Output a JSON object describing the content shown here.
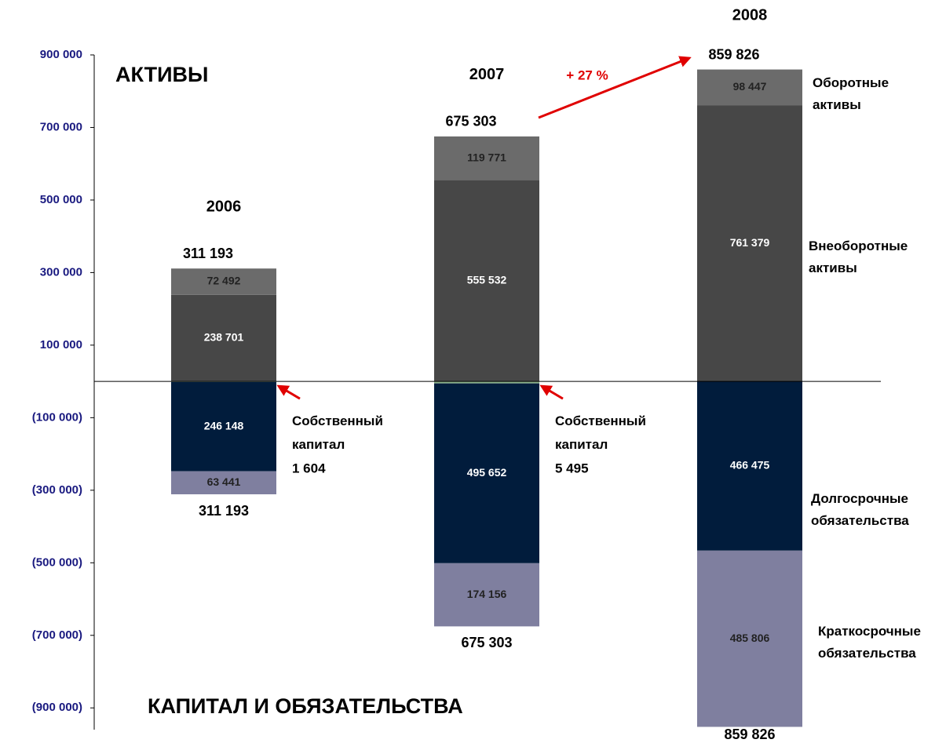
{
  "chart_data": {
    "type": "bar",
    "stacked": true,
    "title": "АКТИВЫ",
    "subtitle": "КАПИТАЛ И ОБЯЗАТЕЛЬСТВА",
    "categories": [
      "2006",
      "2007",
      "2008"
    ],
    "series": [
      {
        "name": "Внеоборотные активы",
        "color": "#474747",
        "values": [
          238701,
          555532,
          761379
        ],
        "value_labels": [
          "238 701",
          "555 532",
          "761 379"
        ]
      },
      {
        "name": "Оборотные активы",
        "color": "#6b6b6b",
        "values": [
          72492,
          119771,
          98447
        ],
        "value_labels": [
          "72 492",
          "119 771",
          "98 447"
        ]
      },
      {
        "name": "Собственный капитал",
        "color": "#8aaf88",
        "values": [
          -1604,
          -5495,
          null
        ],
        "value_labels": [
          "1 604",
          "5 495",
          null
        ]
      },
      {
        "name": "Долгосрочные обязательства",
        "color": "#011c3c",
        "values": [
          -246148,
          -495652,
          -466475
        ],
        "value_labels": [
          "246 148",
          "495 652",
          "466 475"
        ]
      },
      {
        "name": "Краткосрочные обязательства",
        "color": "#7f7f9f",
        "values": [
          -63441,
          -174156,
          -485806
        ],
        "value_labels": [
          "63 441",
          "174 156",
          "485 806"
        ]
      }
    ],
    "asset_totals": [
      {
        "value": 311193,
        "label": "311 193"
      },
      {
        "value": 675303,
        "label": "675 303"
      },
      {
        "value": 859826,
        "label": "859 826"
      }
    ],
    "liability_totals": [
      {
        "value": 311193,
        "label": "311 193"
      },
      {
        "value": 675303,
        "label": "675 303"
      },
      {
        "value": 859826,
        "label": "859 826"
      }
    ],
    "growth_annotation": "+ 27 %",
    "ylim": [
      -960000,
      900000
    ],
    "yticks": [
      {
        "value": 900000,
        "label": "900 000"
      },
      {
        "value": 700000,
        "label": "700 000"
      },
      {
        "value": 500000,
        "label": "500 000"
      },
      {
        "value": 300000,
        "label": "300 000"
      },
      {
        "value": 100000,
        "label": "100 000"
      },
      {
        "value": -100000,
        "label": "(100 000)"
      },
      {
        "value": -300000,
        "label": "(300 000)"
      },
      {
        "value": -500000,
        "label": "(500 000)"
      },
      {
        "value": -700000,
        "label": "(700 000)"
      },
      {
        "value": -900000,
        "label": "(900 000)"
      }
    ],
    "grid": false
  }
}
